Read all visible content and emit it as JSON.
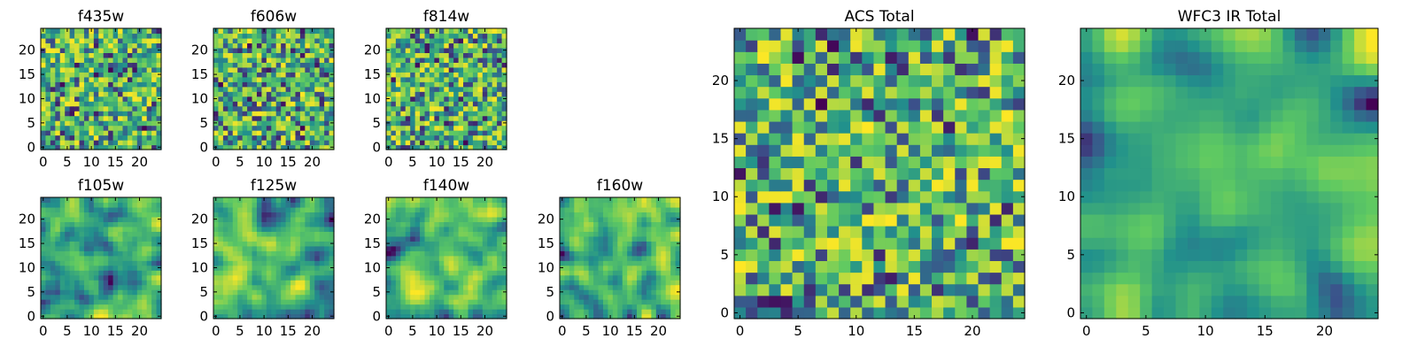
{
  "figure": {
    "colormap": "viridis",
    "colormap_stops": [
      "#440154",
      "#3b528b",
      "#21918c",
      "#5ec962",
      "#fde725"
    ],
    "background": "#ffffff"
  },
  "chart_data": [
    {
      "type": "heatmap",
      "title": "f435w",
      "grid_size": 25,
      "xticks": [
        0,
        5,
        10,
        15,
        20
      ],
      "yticks": [
        0,
        5,
        10,
        15,
        20
      ],
      "xlim": [
        -0.5,
        24.5
      ],
      "ylim": [
        -0.5,
        24.5
      ],
      "smoothness": 0,
      "seed": 11
    },
    {
      "type": "heatmap",
      "title": "f606w",
      "grid_size": 25,
      "xticks": [
        0,
        5,
        10,
        15,
        20
      ],
      "yticks": [
        0,
        5,
        10,
        15,
        20
      ],
      "xlim": [
        -0.5,
        24.5
      ],
      "ylim": [
        -0.5,
        24.5
      ],
      "smoothness": 0,
      "seed": 23
    },
    {
      "type": "heatmap",
      "title": "f814w",
      "grid_size": 25,
      "xticks": [
        0,
        5,
        10,
        15,
        20
      ],
      "yticks": [
        0,
        5,
        10,
        15,
        20
      ],
      "xlim": [
        -0.5,
        24.5
      ],
      "ylim": [
        -0.5,
        24.5
      ],
      "smoothness": 0,
      "seed": 37
    },
    {
      "type": "heatmap",
      "title": "f105w",
      "grid_size": 25,
      "xticks": [
        0,
        5,
        10,
        15,
        20
      ],
      "yticks": [
        0,
        5,
        10,
        15,
        20
      ],
      "xlim": [
        -0.5,
        24.5
      ],
      "ylim": [
        -0.5,
        24.5
      ],
      "smoothness": 2,
      "seed": 41
    },
    {
      "type": "heatmap",
      "title": "f125w",
      "grid_size": 25,
      "xticks": [
        0,
        5,
        10,
        15,
        20
      ],
      "yticks": [
        0,
        5,
        10,
        15,
        20
      ],
      "xlim": [
        -0.5,
        24.5
      ],
      "ylim": [
        -0.5,
        24.5
      ],
      "smoothness": 2,
      "seed": 53
    },
    {
      "type": "heatmap",
      "title": "f140w",
      "grid_size": 25,
      "xticks": [
        0,
        5,
        10,
        15,
        20
      ],
      "yticks": [
        0,
        5,
        10,
        15,
        20
      ],
      "xlim": [
        -0.5,
        24.5
      ],
      "ylim": [
        -0.5,
        24.5
      ],
      "smoothness": 2,
      "seed": 67
    },
    {
      "type": "heatmap",
      "title": "f160w",
      "grid_size": 25,
      "xticks": [
        0,
        5,
        10,
        15,
        20
      ],
      "yticks": [
        0,
        5,
        10,
        15,
        20
      ],
      "xlim": [
        -0.5,
        24.5
      ],
      "ylim": [
        -0.5,
        24.5
      ],
      "smoothness": 2,
      "seed": 79
    },
    {
      "type": "heatmap",
      "title": "ACS Total",
      "grid_size": 25,
      "xticks": [
        0,
        5,
        10,
        15,
        20
      ],
      "yticks": [
        0,
        5,
        10,
        15,
        20
      ],
      "xlim": [
        -0.5,
        24.5
      ],
      "ylim": [
        -0.5,
        24.5
      ],
      "smoothness": 0,
      "seed": 97
    },
    {
      "type": "heatmap",
      "title": "WFC3 IR Total",
      "grid_size": 25,
      "xticks": [
        0,
        5,
        10,
        15,
        20
      ],
      "yticks": [
        0,
        5,
        10,
        15,
        20
      ],
      "xlim": [
        -0.5,
        24.5
      ],
      "ylim": [
        -0.5,
        24.5
      ],
      "smoothness": 3,
      "seed": 113
    }
  ]
}
